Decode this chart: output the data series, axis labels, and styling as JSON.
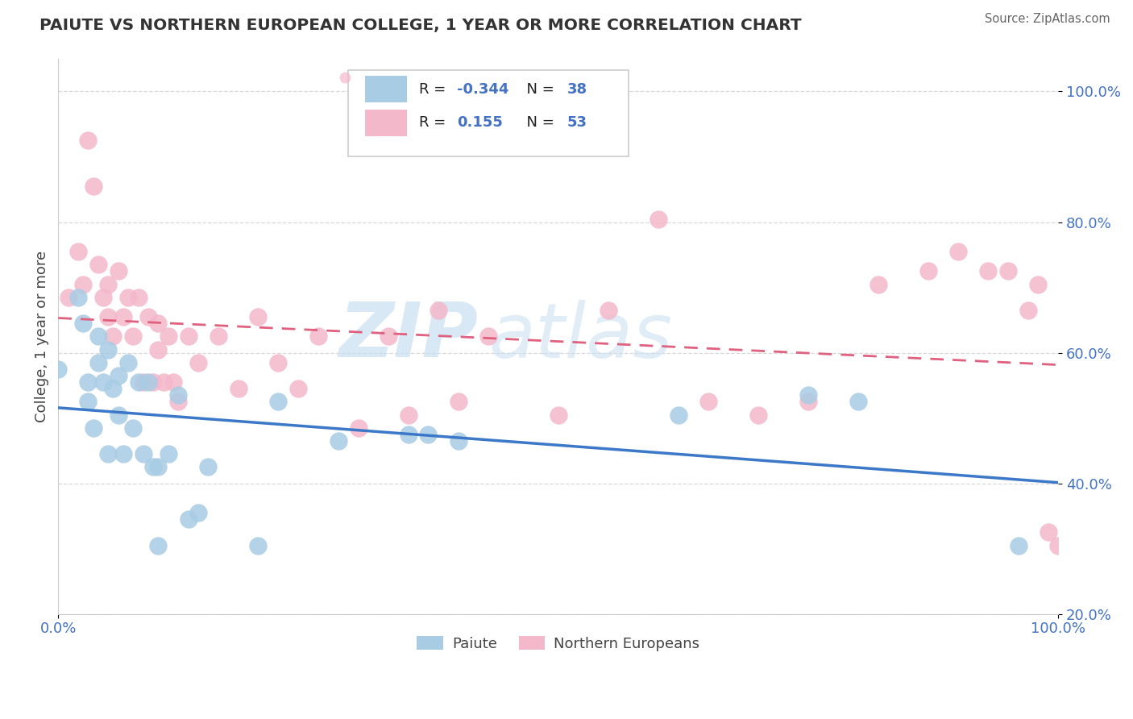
{
  "title": "PAIUTE VS NORTHERN EUROPEAN COLLEGE, 1 YEAR OR MORE CORRELATION CHART",
  "source_text": "Source: ZipAtlas.com",
  "ylabel": "College, 1 year or more",
  "legend_r_blue": "-0.344",
  "legend_n_blue": "38",
  "legend_r_pink": "0.155",
  "legend_n_pink": "53",
  "blue_color": "#a8cce4",
  "pink_color": "#f4b8cb",
  "blue_line_color": "#3c78c8",
  "pink_line_color": "#e06080",
  "watermark_zip": "ZIP",
  "watermark_atlas": "atlas",
  "paiute_x": [
    0.0,
    0.02,
    0.025,
    0.03,
    0.03,
    0.035,
    0.04,
    0.04,
    0.045,
    0.05,
    0.05,
    0.055,
    0.06,
    0.06,
    0.065,
    0.07,
    0.075,
    0.08,
    0.085,
    0.09,
    0.095,
    0.1,
    0.1,
    0.11,
    0.12,
    0.13,
    0.14,
    0.15,
    0.2,
    0.22,
    0.28,
    0.35,
    0.37,
    0.4,
    0.62,
    0.75,
    0.8,
    0.96
  ],
  "paiute_y": [
    0.575,
    0.685,
    0.645,
    0.555,
    0.525,
    0.485,
    0.625,
    0.585,
    0.555,
    0.445,
    0.605,
    0.545,
    0.505,
    0.565,
    0.445,
    0.585,
    0.485,
    0.555,
    0.445,
    0.555,
    0.425,
    0.425,
    0.305,
    0.445,
    0.535,
    0.345,
    0.355,
    0.425,
    0.305,
    0.525,
    0.465,
    0.475,
    0.475,
    0.465,
    0.505,
    0.535,
    0.525,
    0.305
  ],
  "northern_x": [
    0.01,
    0.02,
    0.025,
    0.03,
    0.035,
    0.04,
    0.045,
    0.05,
    0.05,
    0.055,
    0.06,
    0.065,
    0.07,
    0.075,
    0.08,
    0.085,
    0.09,
    0.095,
    0.1,
    0.1,
    0.105,
    0.11,
    0.115,
    0.12,
    0.13,
    0.14,
    0.16,
    0.18,
    0.2,
    0.22,
    0.24,
    0.26,
    0.3,
    0.33,
    0.35,
    0.38,
    0.4,
    0.43,
    0.5,
    0.55,
    0.6,
    0.65,
    0.7,
    0.75,
    0.82,
    0.87,
    0.9,
    0.93,
    0.95,
    0.97,
    0.98,
    0.99,
    1.0
  ],
  "northern_y": [
    0.685,
    0.755,
    0.705,
    0.925,
    0.855,
    0.735,
    0.685,
    0.705,
    0.655,
    0.625,
    0.725,
    0.655,
    0.685,
    0.625,
    0.685,
    0.555,
    0.655,
    0.555,
    0.645,
    0.605,
    0.555,
    0.625,
    0.555,
    0.525,
    0.625,
    0.585,
    0.625,
    0.545,
    0.655,
    0.585,
    0.545,
    0.625,
    0.485,
    0.625,
    0.505,
    0.665,
    0.525,
    0.625,
    0.505,
    0.665,
    0.805,
    0.525,
    0.505,
    0.525,
    0.705,
    0.725,
    0.755,
    0.725,
    0.725,
    0.665,
    0.705,
    0.325,
    0.305
  ],
  "xlim": [
    0.0,
    1.0
  ],
  "ylim": [
    0.2,
    1.05
  ],
  "yticks": [
    0.2,
    0.4,
    0.6,
    0.8,
    1.0
  ],
  "ytick_labels": [
    "20.0%",
    "40.0%",
    "60.0%",
    "80.0%",
    "100.0%"
  ],
  "xticks": [
    0.0,
    1.0
  ],
  "xtick_labels": [
    "0.0%",
    "100.0%"
  ],
  "grid_color": "#d8d8d8",
  "title_color": "#333333",
  "tick_color": "#4472c4",
  "source_color": "#666666"
}
